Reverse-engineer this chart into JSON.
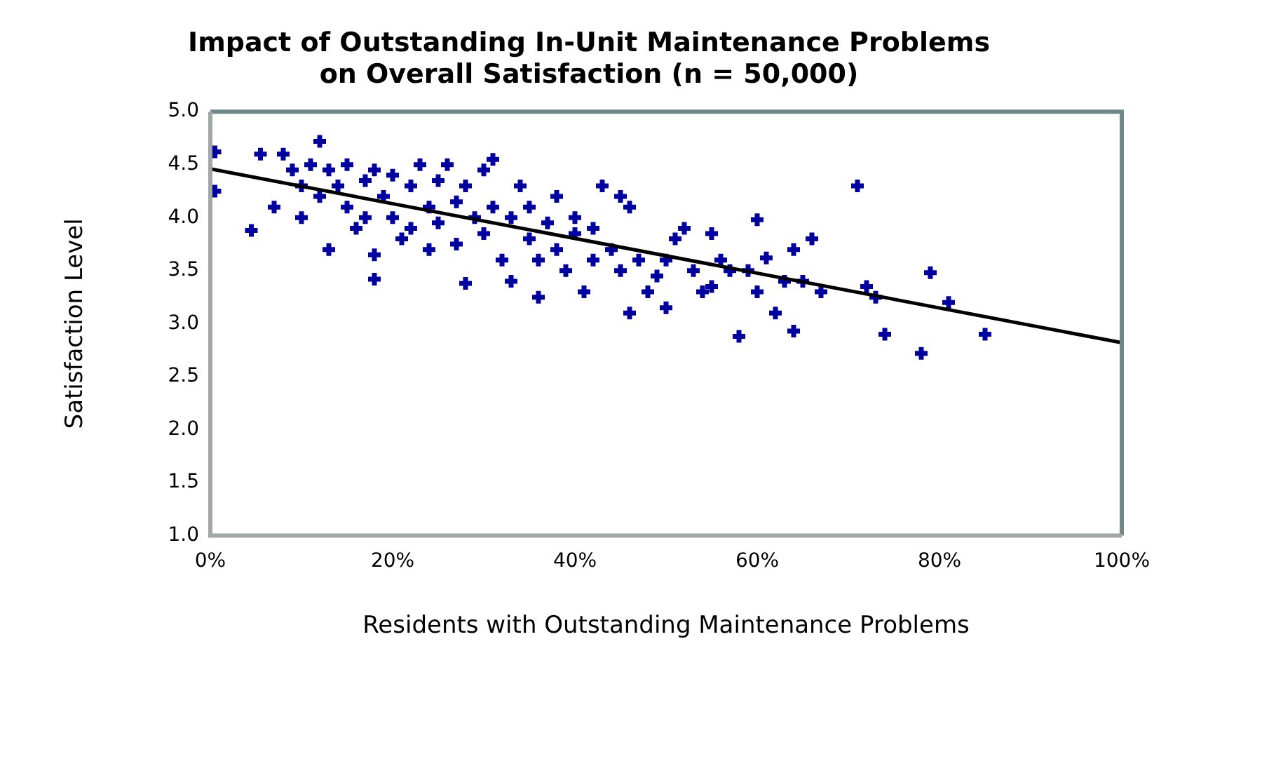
{
  "chart_data": {
    "type": "scatter",
    "title": "Impact of Outstanding In-Unit Maintenance Problems\non Overall Satisfaction (n = 50,000)",
    "xlabel": "Residents with Outstanding Maintenance Problems",
    "ylabel": "Satisfaction Level",
    "xlim": [
      0,
      100
    ],
    "xticks": [
      {
        "value": 0,
        "label": "0%"
      },
      {
        "value": 20,
        "label": "20%"
      },
      {
        "value": 40,
        "label": "40%"
      },
      {
        "value": 60,
        "label": "60%"
      },
      {
        "value": 80,
        "label": "80%"
      },
      {
        "value": 100,
        "label": "100%"
      }
    ],
    "ylim": [
      1,
      5
    ],
    "yticks": [
      {
        "value": 1,
        "label": "1.0"
      },
      {
        "value": 1.5,
        "label": "1.5"
      },
      {
        "value": 2,
        "label": "2.0"
      },
      {
        "value": 2.5,
        "label": "2.5"
      },
      {
        "value": 3,
        "label": "3.0"
      },
      {
        "value": 3.5,
        "label": "3.5"
      },
      {
        "value": 4,
        "label": "4.0"
      },
      {
        "value": 4.5,
        "label": "4.5"
      },
      {
        "value": 5,
        "label": "5.0"
      }
    ],
    "grid": false,
    "legend": false,
    "marker": "cross",
    "series": [
      {
        "color": "#0000a0",
        "x": [
          0.5,
          0.5,
          4.5,
          5.5,
          7,
          8,
          9,
          10,
          10,
          11,
          12,
          12,
          13,
          13,
          14,
          15,
          15,
          16,
          17,
          17,
          18,
          18,
          18,
          19,
          20,
          20,
          21,
          22,
          22,
          23,
          24,
          24,
          25,
          25,
          26,
          27,
          27,
          28,
          28,
          29,
          30,
          30,
          31,
          31,
          32,
          33,
          33,
          34,
          35,
          35,
          36,
          36,
          37,
          38,
          38,
          39,
          40,
          40,
          41,
          42,
          42,
          43,
          44,
          45,
          45,
          46,
          46,
          47,
          48,
          49,
          50,
          50,
          51,
          52,
          53,
          54,
          55,
          55,
          56,
          57,
          58,
          59,
          60,
          60,
          61,
          62,
          63,
          64,
          64,
          65,
          66,
          67,
          71,
          72,
          73,
          74,
          78,
          79,
          81,
          85
        ],
        "values": [
          4.62,
          4.25,
          3.88,
          4.6,
          4.1,
          4.6,
          4.45,
          4.0,
          4.3,
          4.5,
          4.72,
          4.2,
          3.7,
          4.45,
          4.3,
          4.1,
          4.5,
          3.9,
          4.35,
          4.0,
          3.42,
          3.65,
          4.45,
          4.2,
          4.0,
          4.4,
          3.8,
          4.3,
          3.9,
          4.5,
          4.1,
          3.7,
          4.35,
          3.95,
          4.5,
          4.15,
          3.75,
          3.38,
          4.3,
          4.0,
          3.85,
          4.45,
          4.55,
          4.1,
          3.6,
          3.4,
          4.0,
          4.3,
          3.8,
          4.1,
          3.25,
          3.6,
          3.95,
          3.7,
          4.2,
          3.5,
          3.85,
          4.0,
          3.3,
          3.6,
          3.9,
          4.3,
          3.7,
          4.2,
          3.5,
          3.1,
          4.1,
          3.6,
          3.3,
          3.45,
          3.15,
          3.6,
          3.8,
          3.9,
          3.5,
          3.3,
          3.35,
          3.85,
          3.6,
          3.5,
          2.88,
          3.5,
          3.98,
          3.3,
          3.62,
          3.1,
          3.4,
          2.93,
          3.7,
          3.4,
          3.8,
          3.3,
          4.3,
          3.35,
          3.25,
          2.9,
          2.72,
          3.48,
          3.2,
          2.9
        ]
      },
      {
        "type": "line",
        "color": "#000000",
        "x": [
          0,
          100
        ],
        "values": [
          4.46,
          2.82
        ],
        "marker": "none"
      }
    ]
  }
}
